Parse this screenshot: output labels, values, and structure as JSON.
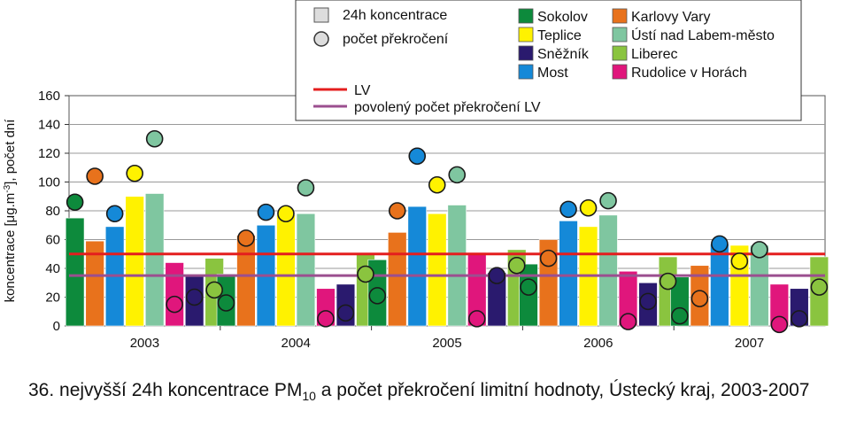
{
  "chart_data": {
    "type": "bar",
    "categories": [
      "2003",
      "2004",
      "2005",
      "2006",
      "2007"
    ],
    "ylabel_pre": "koncentrace [μg.m",
    "ylabel_sup": "-3",
    "ylabel_post": "], počet dní",
    "ylim": [
      0,
      160
    ],
    "yticks": [
      "0",
      "20",
      "40",
      "60",
      "80",
      "100",
      "120",
      "140",
      "160"
    ],
    "grid": true,
    "legend_position": "top-right",
    "legend_types": {
      "bar": "24h koncentrace",
      "marker": "počet překročení"
    },
    "series": [
      {
        "name": "Sokolov",
        "color": "#0d8a3c",
        "values": [
          75,
          36,
          46,
          43,
          34
        ],
        "exceedances": [
          86,
          16,
          21,
          27,
          7
        ]
      },
      {
        "name": "Karlovy Vary",
        "color": "#e8721c",
        "values": [
          59,
          63,
          65,
          60,
          42
        ],
        "exceedances": [
          104,
          61,
          80,
          47,
          19
        ]
      },
      {
        "name": "Most",
        "color": "#1589d8",
        "values": [
          69,
          70,
          83,
          73,
          57
        ],
        "exceedances": [
          78,
          79,
          118,
          81,
          57
        ]
      },
      {
        "name": "Teplice",
        "color": "#fff200",
        "values": [
          90,
          77,
          78,
          69,
          56
        ],
        "exceedances": [
          106,
          78,
          98,
          82,
          45
        ]
      },
      {
        "name": "Ústí nad Labem-město",
        "color": "#7fc6a0",
        "values": [
          92,
          78,
          84,
          77,
          56
        ],
        "exceedances": [
          130,
          96,
          105,
          87,
          53
        ]
      },
      {
        "name": "Rudolice v Horách",
        "color": "#e0167c",
        "values": [
          44,
          26,
          51,
          38,
          29
        ],
        "exceedances": [
          15,
          5,
          5,
          3,
          1
        ]
      },
      {
        "name": "Sněžník",
        "color": "#2a1a6e",
        "values": [
          35,
          29,
          37,
          30,
          26
        ],
        "exceedances": [
          20,
          9,
          35,
          17,
          5
        ]
      },
      {
        "name": "Liberec",
        "color": "#8ac43f",
        "values": [
          47,
          50,
          53,
          48,
          48
        ],
        "exceedances": [
          25,
          36,
          42,
          31,
          27
        ]
      }
    ],
    "reference_lines": [
      {
        "name": "LV",
        "value": 50,
        "color": "#e41e1e"
      },
      {
        "name": "povolený počet překročení LV",
        "value": 35,
        "color": "#9b4f8f"
      }
    ]
  },
  "caption": {
    "text_pre": "36. nejvyšší 24h koncentrace PM",
    "text_sub": "10",
    "text_post": " a počet překročení limitní hodnoty, Ústecký kraj, 2003-2007"
  }
}
